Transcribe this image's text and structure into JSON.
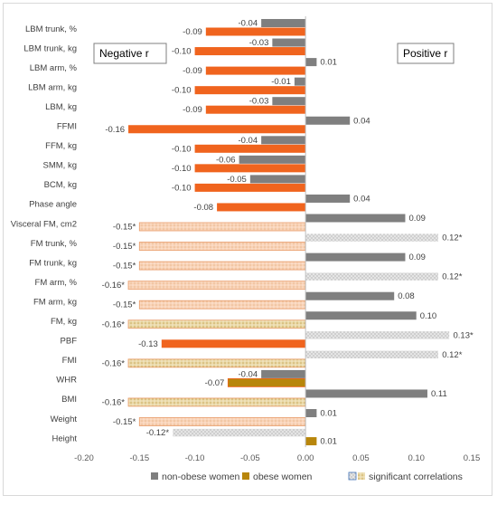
{
  "chart_data": {
    "type": "bar",
    "orientation": "horizontal",
    "categories": [
      "LBM trunk, %",
      "LBM trunk, kg",
      "LBM arm, %",
      "LBM arm, kg",
      "LBM, kg",
      "FFMI",
      "FFM, kg",
      "SMM, kg",
      "BCM, kg",
      "Phase angle",
      "Visceral FM, cm2",
      "FM trunk, %",
      "FM trunk, kg",
      "FM arm, %",
      "FM arm, kg",
      "FM, kg",
      "PBF",
      "FMI",
      "WHR",
      "BMI",
      "Weight",
      "Height"
    ],
    "series": [
      {
        "name": "non-obese women",
        "values": [
          -0.04,
          -0.03,
          0.01,
          -0.01,
          -0.03,
          0.04,
          -0.04,
          -0.06,
          -0.05,
          0.04,
          0.09,
          0.12,
          0.09,
          0.12,
          0.08,
          0.1,
          0.13,
          0.12,
          -0.04,
          0.11,
          0.01,
          -0.12
        ],
        "labels": [
          "-0.04",
          "-0.03",
          "0.01",
          "-0.01",
          "-0.03",
          "0.04",
          "-0.04",
          "-0.06",
          "-0.05",
          "0.04",
          "0.09",
          "0.12*",
          "0.09",
          "0.12*",
          "0.08",
          "0.10",
          "0.13*",
          "0.12*",
          "-0.04",
          "0.11",
          "0.01",
          "-0.12*"
        ],
        "significant": [
          false,
          false,
          false,
          false,
          false,
          false,
          false,
          false,
          false,
          false,
          false,
          true,
          false,
          true,
          false,
          false,
          true,
          true,
          false,
          false,
          false,
          true
        ],
        "color": "#7f7f7f"
      },
      {
        "name": "obese women",
        "values": [
          -0.09,
          -0.1,
          -0.09,
          -0.1,
          -0.09,
          -0.16,
          -0.1,
          -0.1,
          -0.1,
          -0.08,
          -0.15,
          -0.15,
          -0.15,
          -0.16,
          -0.15,
          -0.16,
          -0.13,
          -0.16,
          -0.07,
          -0.16,
          -0.15,
          0.01
        ],
        "labels": [
          "-0.09",
          "-0.10",
          "-0.09",
          "-0.10",
          "-0.09",
          "-0.16",
          "-0.10",
          "-0.10",
          "-0.10",
          "-0.08",
          "-0.15*",
          "-0.15*",
          "-0.15*",
          "-0.16*",
          "-0.15*",
          "-0.16*",
          "-0.13",
          "-0.16*",
          "-0.07",
          "-0.16*",
          "-0.15*",
          "0.01"
        ],
        "significant": [
          false,
          false,
          false,
          false,
          false,
          false,
          false,
          false,
          false,
          false,
          true,
          true,
          true,
          true,
          true,
          true,
          false,
          true,
          false,
          true,
          true,
          false
        ],
        "color": "#f0641e"
      }
    ],
    "xlim": [
      -0.2,
      0.15
    ],
    "xticks": [
      "-0.20",
      "-0.15",
      "-0.10",
      "-0.05",
      "0.00",
      "0.05",
      "0.10",
      "0.15"
    ],
    "xtick_values": [
      -0.2,
      -0.15,
      -0.1,
      -0.05,
      0.0,
      0.05,
      0.1,
      0.15
    ],
    "grid": false,
    "annotations": {
      "negative": "Negative r",
      "positive": "Positive r"
    },
    "legend": {
      "position": "bottom",
      "entries": [
        {
          "label": "non-obese women",
          "color": "#7f7f7f"
        },
        {
          "label": "obese women",
          "color": "#b8860b"
        },
        {
          "label": "significant correlations",
          "color": "#c8c8c8"
        }
      ]
    },
    "colors": {
      "non_obese": "#7f7f7f",
      "obese": "#f0641e",
      "obese_sig": "#f7c9a8",
      "sig_grey": "#d9d9d9",
      "whr_fill": "#b8860b",
      "axis": "#bfbfbf",
      "text": "#404040"
    }
  }
}
